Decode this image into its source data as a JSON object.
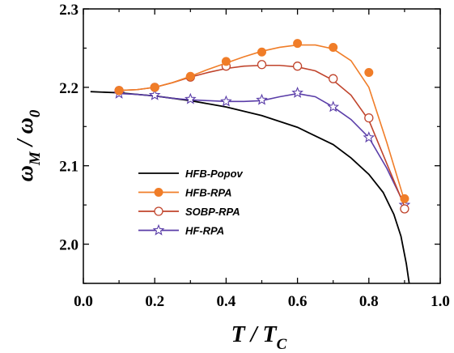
{
  "chart_data": {
    "type": "line",
    "xlabel": {
      "main": "T / T",
      "sub": "C"
    },
    "ylabel": {
      "main": "ω",
      "sub1": "M",
      "sep": " / ω",
      "sub2": "0"
    },
    "xlim": [
      0.0,
      1.0
    ],
    "ylim": [
      1.95,
      2.3
    ],
    "xticks": [
      "0.0",
      "0.2",
      "0.4",
      "0.6",
      "0.8",
      "1.0"
    ],
    "yticks": [
      "2.0",
      "2.1",
      "2.2",
      "2.3"
    ],
    "legend_position": "lower-left",
    "series": [
      {
        "name": "HFB-Popov",
        "color": "#000000",
        "marker": "none",
        "curve": [
          [
            0.02,
            2.1945
          ],
          [
            0.1,
            2.193
          ],
          [
            0.2,
            2.189
          ],
          [
            0.3,
            2.183
          ],
          [
            0.4,
            2.175
          ],
          [
            0.5,
            2.164
          ],
          [
            0.6,
            2.149
          ],
          [
            0.7,
            2.127
          ],
          [
            0.75,
            2.11
          ],
          [
            0.8,
            2.089
          ],
          [
            0.84,
            2.066
          ],
          [
            0.87,
            2.038
          ],
          [
            0.89,
            2.01
          ],
          [
            0.905,
            1.975
          ],
          [
            0.913,
            1.95
          ]
        ],
        "points": []
      },
      {
        "name": "HFB-RPA",
        "color": "#f07d28",
        "marker": "filled-circle",
        "curve": [
          [
            0.1,
            2.196
          ],
          [
            0.15,
            2.197
          ],
          [
            0.2,
            2.2
          ],
          [
            0.25,
            2.206
          ],
          [
            0.3,
            2.214
          ],
          [
            0.35,
            2.223
          ],
          [
            0.4,
            2.231
          ],
          [
            0.45,
            2.239
          ],
          [
            0.5,
            2.246
          ],
          [
            0.55,
            2.251
          ],
          [
            0.6,
            2.254
          ],
          [
            0.65,
            2.254
          ],
          [
            0.7,
            2.249
          ],
          [
            0.75,
            2.234
          ],
          [
            0.8,
            2.2
          ],
          [
            0.85,
            2.13
          ],
          [
            0.9,
            2.055
          ]
        ],
        "points": [
          [
            0.1,
            2.196
          ],
          [
            0.2,
            2.2
          ],
          [
            0.3,
            2.214
          ],
          [
            0.4,
            2.233
          ],
          [
            0.5,
            2.245
          ],
          [
            0.6,
            2.256
          ],
          [
            0.7,
            2.251
          ],
          [
            0.8,
            2.219
          ],
          [
            0.9,
            2.058
          ]
        ]
      },
      {
        "name": "SOBP-RPA",
        "color": "#c0442c",
        "marker": "open-circle",
        "curve": [
          [
            0.1,
            2.196
          ],
          [
            0.15,
            2.197
          ],
          [
            0.2,
            2.2
          ],
          [
            0.25,
            2.206
          ],
          [
            0.3,
            2.213
          ],
          [
            0.35,
            2.219
          ],
          [
            0.4,
            2.224
          ],
          [
            0.45,
            2.227
          ],
          [
            0.5,
            2.228
          ],
          [
            0.55,
            2.228
          ],
          [
            0.6,
            2.226
          ],
          [
            0.65,
            2.221
          ],
          [
            0.7,
            2.209
          ],
          [
            0.75,
            2.19
          ],
          [
            0.8,
            2.158
          ],
          [
            0.85,
            2.103
          ],
          [
            0.9,
            2.048
          ]
        ],
        "points": [
          [
            0.1,
            2.196
          ],
          [
            0.2,
            2.2
          ],
          [
            0.3,
            2.213
          ],
          [
            0.4,
            2.227
          ],
          [
            0.5,
            2.229
          ],
          [
            0.6,
            2.227
          ],
          [
            0.7,
            2.211
          ],
          [
            0.8,
            2.161
          ],
          [
            0.9,
            2.045
          ]
        ]
      },
      {
        "name": "HF-RPA",
        "color": "#5a3da8",
        "marker": "open-star",
        "curve": [
          [
            0.1,
            2.192
          ],
          [
            0.15,
            2.191
          ],
          [
            0.2,
            2.189
          ],
          [
            0.25,
            2.186
          ],
          [
            0.3,
            2.184
          ],
          [
            0.35,
            2.183
          ],
          [
            0.4,
            2.182
          ],
          [
            0.45,
            2.182
          ],
          [
            0.5,
            2.183
          ],
          [
            0.55,
            2.188
          ],
          [
            0.6,
            2.192
          ],
          [
            0.65,
            2.188
          ],
          [
            0.7,
            2.175
          ],
          [
            0.75,
            2.159
          ],
          [
            0.8,
            2.136
          ],
          [
            0.85,
            2.097
          ],
          [
            0.9,
            2.05
          ]
        ],
        "points": [
          [
            0.1,
            2.192
          ],
          [
            0.2,
            2.19
          ],
          [
            0.3,
            2.185
          ],
          [
            0.4,
            2.182
          ],
          [
            0.5,
            2.184
          ],
          [
            0.6,
            2.193
          ],
          [
            0.7,
            2.175
          ],
          [
            0.8,
            2.136
          ],
          [
            0.9,
            2.05
          ]
        ]
      }
    ]
  }
}
